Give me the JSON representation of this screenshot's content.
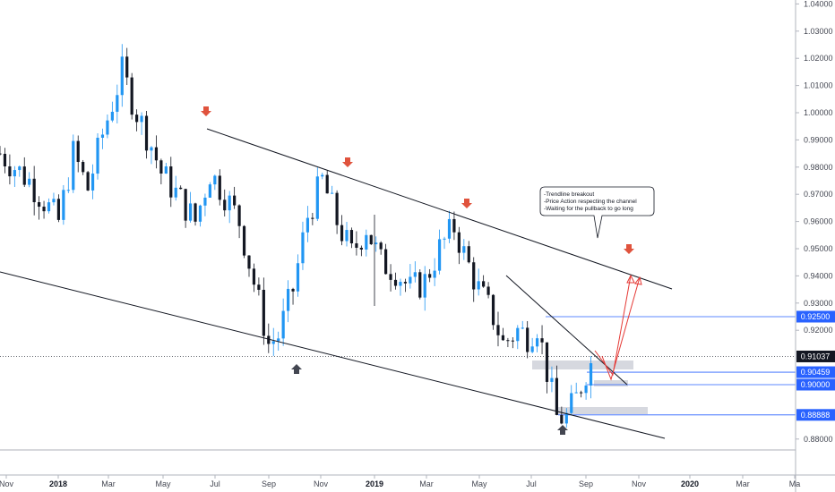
{
  "chart_data": {
    "type": "candlestick",
    "price_axis": {
      "ticks": [
        "1.04000",
        "1.03000",
        "1.02000",
        "1.01000",
        "1.00000",
        "0.99000",
        "0.98000",
        "0.97000",
        "0.96000",
        "0.95000",
        "0.94000",
        "0.93000",
        "0.92000",
        "0.88000"
      ],
      "ylim": [
        0.87,
        1.04
      ]
    },
    "time_axis": {
      "labels": [
        {
          "text": "Nov",
          "bold": false
        },
        {
          "text": "2018",
          "bold": true
        },
        {
          "text": "Mar",
          "bold": false
        },
        {
          "text": "May",
          "bold": false
        },
        {
          "text": "Jul",
          "bold": false
        },
        {
          "text": "Sep",
          "bold": false
        },
        {
          "text": "Nov",
          "bold": false
        },
        {
          "text": "2019",
          "bold": true
        },
        {
          "text": "Mar",
          "bold": false
        },
        {
          "text": "May",
          "bold": false
        },
        {
          "text": "Jul",
          "bold": false
        },
        {
          "text": "Sep",
          "bold": false
        },
        {
          "text": "Nov",
          "bold": false
        },
        {
          "text": "2020",
          "bold": true
        },
        {
          "text": "Mar",
          "bold": false
        },
        {
          "text": "Ma",
          "bold": false
        }
      ]
    },
    "price_path": [
      [
        0,
        0.985
      ],
      [
        6,
        0.975
      ],
      [
        12,
        0.96
      ],
      [
        15,
        0.985
      ],
      [
        18,
        0.972
      ],
      [
        21,
        0.992
      ],
      [
        25,
        1.015
      ],
      [
        28,
        1.0
      ],
      [
        31,
        0.988
      ],
      [
        33,
        0.978
      ],
      [
        37,
        0.968
      ],
      [
        40,
        0.96
      ],
      [
        43,
        0.978
      ],
      [
        46,
        0.97
      ],
      [
        49,
        0.96
      ],
      [
        51,
        0.945
      ],
      [
        53,
        0.93
      ],
      [
        55,
        0.915
      ],
      [
        57,
        0.918
      ],
      [
        60,
        0.935
      ],
      [
        63,
        0.962
      ],
      [
        66,
        0.975
      ],
      [
        69,
        0.96
      ],
      [
        72,
        0.948
      ],
      [
        75,
        0.958
      ],
      [
        78,
        0.945
      ],
      [
        81,
        0.942
      ],
      [
        84,
        0.935
      ],
      [
        87,
        0.938
      ],
      [
        90,
        0.95
      ],
      [
        93,
        0.958
      ],
      [
        95,
        0.948
      ],
      [
        98,
        0.935
      ],
      [
        101,
        0.925
      ],
      [
        103,
        0.915
      ],
      [
        106,
        0.92
      ],
      [
        108,
        0.918
      ],
      [
        110,
        0.922
      ],
      [
        112,
        0.905
      ],
      [
        114,
        0.888
      ],
      [
        116,
        0.888
      ],
      [
        118,
        0.895
      ],
      [
        120,
        0.905
      ],
      [
        122,
        0.91
      ]
    ],
    "horizontal_levels": [
      {
        "price": 0.925,
        "label": "0.92500",
        "color": "#2962ff"
      },
      {
        "price": 0.91037,
        "label": "0.91037",
        "color": "#131722"
      },
      {
        "price": 0.90459,
        "label": "0.90459",
        "color": "#2962ff"
      },
      {
        "price": 0.9,
        "label": "0.90000",
        "color": "#2962ff"
      },
      {
        "price": 0.88888,
        "label": "0.88888",
        "color": "#2962ff"
      }
    ],
    "annotation": {
      "lines": [
        "-Trendline breakout",
        "-Price Action respecting the channel",
        "-Waiting for the pullback to go long"
      ]
    },
    "colors": {
      "up": "#2196f3",
      "down": "#131722",
      "level": "#2962ff",
      "current_price": "#131722",
      "bear_arrow": "#e0533d",
      "bull_arrow": "#434651",
      "zone": "#d1d4dc",
      "projection": "#e53935"
    }
  }
}
